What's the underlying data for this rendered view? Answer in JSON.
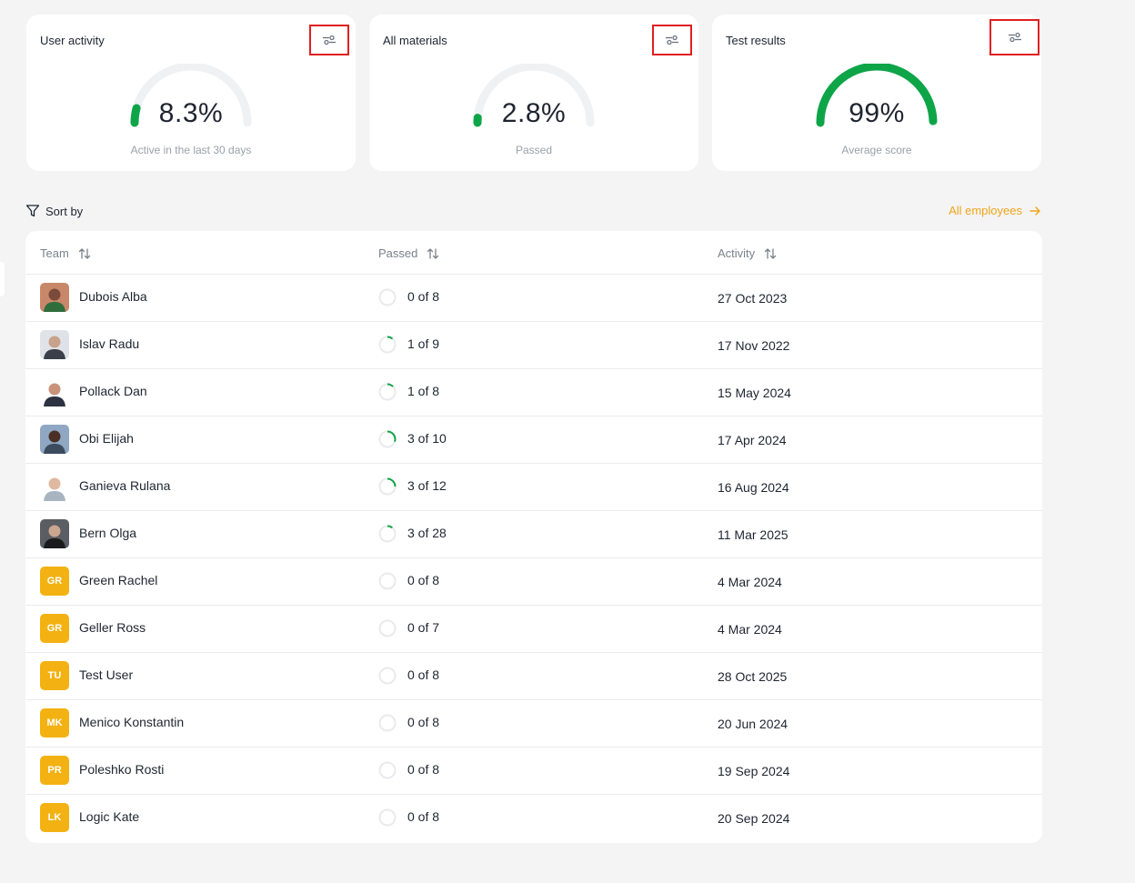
{
  "cards": [
    {
      "title": "User activity",
      "value": "8.3%",
      "caption": "Active in the last 30 days",
      "fraction": 0.083
    },
    {
      "title": "All materials",
      "value": "2.8%",
      "caption": "Passed",
      "fraction": 0.028
    },
    {
      "title": "Test results",
      "value": "99%",
      "caption": "Average score",
      "fraction": 0.99
    }
  ],
  "toolbar": {
    "sort_label": "Sort by",
    "all_employees_label": "All employees"
  },
  "table": {
    "columns": [
      "Team",
      "Passed",
      "Activity"
    ],
    "rows": [
      {
        "name": "Dubois Alba",
        "passed": "0 of 8",
        "activity": "27 Oct 2023",
        "progress": 0,
        "photo": true,
        "initials": ""
      },
      {
        "name": "Islav Radu",
        "passed": "1 of 9",
        "activity": "17 Nov 2022",
        "progress": 0.111,
        "photo": true,
        "initials": ""
      },
      {
        "name": "Pollack Dan",
        "passed": "1 of 8",
        "activity": "15 May 2024",
        "progress": 0.125,
        "photo": true,
        "initials": ""
      },
      {
        "name": "Obi Elijah",
        "passed": "3 of 10",
        "activity": "17 Apr 2024",
        "progress": 0.3,
        "photo": true,
        "initials": ""
      },
      {
        "name": "Ganieva Rulana",
        "passed": "3 of 12",
        "activity": "16 Aug 2024",
        "progress": 0.25,
        "photo": true,
        "initials": ""
      },
      {
        "name": "Bern Olga",
        "passed": "3 of 28",
        "activity": "11 Mar 2025",
        "progress": 0.107,
        "photo": true,
        "initials": ""
      },
      {
        "name": "Green Rachel",
        "passed": "0 of 8",
        "activity": "4 Mar 2024",
        "progress": 0,
        "photo": false,
        "initials": "GR"
      },
      {
        "name": "Geller Ross",
        "passed": "0 of 7",
        "activity": "4 Mar 2024",
        "progress": 0,
        "photo": false,
        "initials": "GR"
      },
      {
        "name": "Test User",
        "passed": "0 of 8",
        "activity": "28 Oct 2025",
        "progress": 0,
        "photo": false,
        "initials": "TU"
      },
      {
        "name": "Menico Konstantin",
        "passed": "0 of 8",
        "activity": "20 Jun 2024",
        "progress": 0,
        "photo": false,
        "initials": "MK"
      },
      {
        "name": "Poleshko Rosti",
        "passed": "0 of 8",
        "activity": "19 Sep 2024",
        "progress": 0,
        "photo": false,
        "initials": "PR"
      },
      {
        "name": "Logic Kate",
        "passed": "0 of 8",
        "activity": "20 Sep 2024",
        "progress": 0,
        "photo": false,
        "initials": "LK"
      }
    ]
  },
  "colors": {
    "accent": "#f0a419",
    "gauge_fill": "#0ea548",
    "gauge_track": "#f0f1f3",
    "avatar_initials_bg": "#f3b212",
    "highlight_border": "#e02020"
  }
}
